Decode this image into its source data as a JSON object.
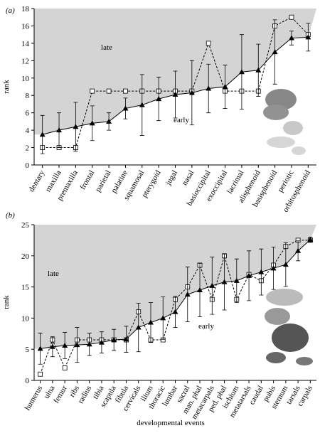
{
  "chart_data": [
    {
      "type": "line",
      "panel_label": "(a)",
      "y_label": "rank",
      "annotations": [
        "late",
        "early"
      ],
      "categories": [
        "dentary",
        "maxilla",
        "premaxilla",
        "frontal",
        "parietal",
        "palatine",
        "squamosal",
        "pterygoid",
        "jugal",
        "nasal",
        "basioccipital",
        "exoccipital",
        "lacrimal",
        "alisphenoid",
        "basisphenoid",
        "periotic",
        "orbitosphenoid"
      ],
      "series": [
        {
          "color": "#000000",
          "marker": "triangle",
          "linestyle": "solid",
          "values": [
            3.5,
            4.0,
            4.4,
            4.8,
            5.0,
            6.5,
            6.9,
            7.6,
            8.1,
            8.3,
            8.8,
            9.0,
            10.7,
            10.9,
            13.0,
            14.6,
            14.7
          ],
          "errors": [
            2.2,
            2.0,
            2.8,
            2.0,
            1.0,
            1.2,
            3.5,
            2.5,
            2.7,
            3.7,
            2.8,
            2.5,
            4.3,
            3.0,
            3.7,
            0.8,
            1.6
          ]
        },
        {
          "color": "#000000",
          "marker": "square",
          "linestyle": "dashed",
          "values": [
            2,
            2,
            2,
            8.5,
            8.5,
            8.5,
            8.5,
            8.5,
            8.5,
            8.5,
            14,
            8.5,
            8.5,
            8.5,
            16,
            17,
            15
          ]
        }
      ],
      "ylim": [
        0,
        18
      ],
      "yticks": [
        0,
        2,
        4,
        6,
        8,
        10,
        12,
        14,
        16,
        18
      ],
      "shading": "#d4d4d4"
    },
    {
      "type": "line",
      "panel_label": "(b)",
      "y_label": "rank",
      "x_label": "developmental events",
      "annotations": [
        "late",
        "early"
      ],
      "categories": [
        "humerus",
        "ulna",
        "femur",
        "ribs",
        "radius",
        "tibia",
        "scapula",
        "fibula",
        "cervicals",
        "ilium",
        "thoracic",
        "lumbar",
        "sacral",
        "man. phal",
        "metacarpals",
        "ped. phal",
        "ischium",
        "metatarsals",
        "caudal",
        "pubis",
        "sternum",
        "tarsals",
        "carpals"
      ],
      "series": [
        {
          "color": "#000000",
          "marker": "triangle",
          "linestyle": "solid",
          "values": [
            5.1,
            5.4,
            5.6,
            5.7,
            5.8,
            6.1,
            6.5,
            6.6,
            8.5,
            9.3,
            10.0,
            11.0,
            13.8,
            14.5,
            15.2,
            15.8,
            16.0,
            16.8,
            17.4,
            18.0,
            18.6,
            20.8,
            22.6
          ],
          "errors": [
            2.5,
            1.6,
            2.1,
            2.8,
            1.8,
            1.7,
            1.7,
            2.1,
            3.9,
            3.2,
            3.4,
            2.5,
            4.4,
            4.3,
            4.6,
            4.5,
            3.5,
            4.0,
            3.7,
            3.4,
            3.5,
            1.6,
            0.4
          ]
        },
        {
          "color": "#000000",
          "marker": "square",
          "linestyle": "dashed",
          "values": [
            1,
            6.5,
            2,
            6.5,
            6.5,
            6.5,
            6.5,
            6.5,
            11,
            6.5,
            6.5,
            13,
            15,
            18.5,
            13,
            20,
            13,
            17,
            16,
            18.5,
            21.5,
            22.5,
            22.5
          ]
        }
      ],
      "ylim": [
        0,
        25
      ],
      "yticks": [
        0,
        5,
        10,
        15,
        20,
        25
      ],
      "shading": "#d4d4d4"
    }
  ]
}
